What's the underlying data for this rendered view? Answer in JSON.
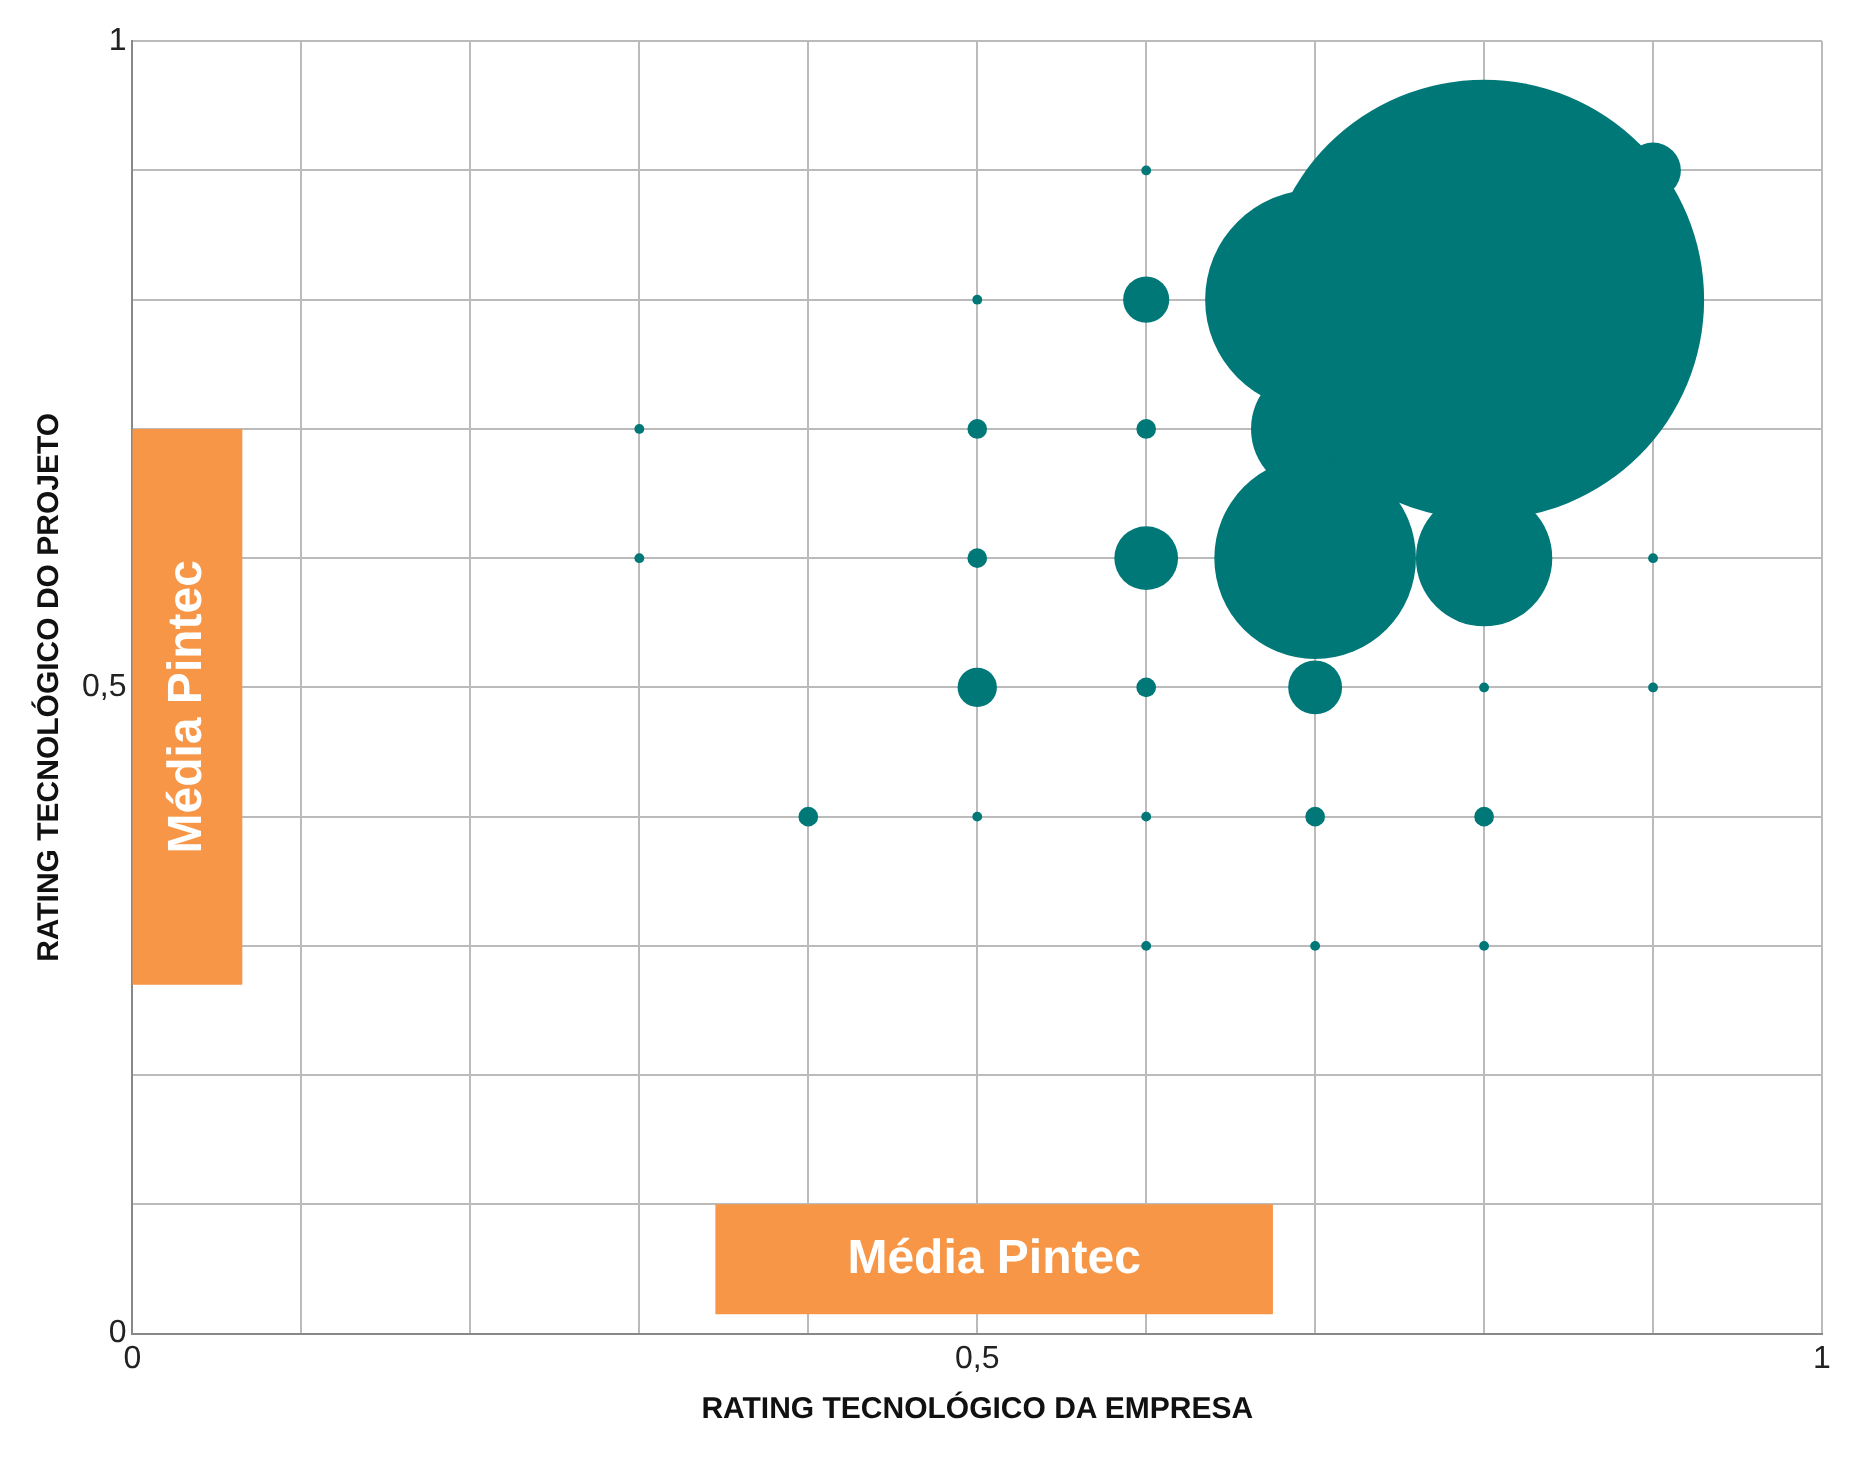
{
  "chart_data": {
    "type": "bubble",
    "xlabel": "RATING TECNOLÓGICO DA EMPRESA",
    "ylabel": "RATING TECNOLÓGICO DO PROJETO",
    "x": [
      0.3,
      0.3,
      0.4,
      0.5,
      0.5,
      0.5,
      0.5,
      0.5,
      0.6,
      0.6,
      0.6,
      0.6,
      0.6,
      0.6,
      0.6,
      0.7,
      0.7,
      0.8,
      0.8,
      0.8,
      0.9,
      0.9,
      0.7,
      0.9,
      0.8,
      0.7,
      0.7,
      0.7,
      0.8
    ],
    "values": [
      0.7,
      0.6,
      0.4,
      0.8,
      0.7,
      0.6,
      0.5,
      0.4,
      0.9,
      0.8,
      0.7,
      0.6,
      0.5,
      0.4,
      0.3,
      0.4,
      0.3,
      0.5,
      0.4,
      0.3,
      0.6,
      0.5,
      0.5,
      0.9,
      0.6,
      0.7,
      0.6,
      0.8,
      0.8
    ],
    "sizes": [
      0.0005,
      0.0005,
      0.002,
      0.0005,
      0.002,
      0.002,
      0.008,
      0.0005,
      0.0005,
      0.011,
      0.002,
      0.021,
      0.002,
      0.0005,
      0.0005,
      0.002,
      0.0005,
      0.0005,
      0.002,
      0.0005,
      0.0005,
      0.0005,
      0.015,
      0.016,
      0.096,
      0.085,
      0.21,
      0.25,
      1
    ],
    "color": "#007878",
    "xlim": [
      0,
      1
    ],
    "ylim": [
      0,
      1
    ],
    "xticks": [
      0,
      {
        "value": 0.1,
        "label": null
      },
      {
        "value": 0.2,
        "label": null
      },
      {
        "value": 0.3,
        "label": null
      },
      {
        "value": 0.4,
        "label": null
      },
      {
        "value": 0.5,
        "label": "0,5"
      },
      {
        "value": 0.6,
        "label": null
      },
      {
        "value": 0.7,
        "label": null
      },
      {
        "value": 0.8,
        "label": null
      },
      {
        "value": 0.9,
        "label": null
      },
      1
    ],
    "yticks": [
      0,
      {
        "value": 0.1,
        "label": null
      },
      {
        "value": 0.2,
        "label": null
      },
      {
        "value": 0.3,
        "label": null
      },
      {
        "value": 0.4,
        "label": null
      },
      {
        "value": 0.5,
        "label": "0,5"
      },
      {
        "value": 0.6,
        "label": null
      },
      {
        "value": 0.7,
        "label": null
      },
      {
        "value": 0.8,
        "label": null
      },
      {
        "value": 0.9,
        "label": null
      },
      1
    ],
    "grid": true,
    "bands": [
      {
        "axis": "y",
        "from": 0.27,
        "to": 0.7,
        "label": "Média Pintec",
        "color": "#f79646"
      },
      {
        "axis": "x",
        "from": 0.345,
        "to": 0.675,
        "label": "Média Pintec",
        "color": "#f79646"
      }
    ]
  }
}
